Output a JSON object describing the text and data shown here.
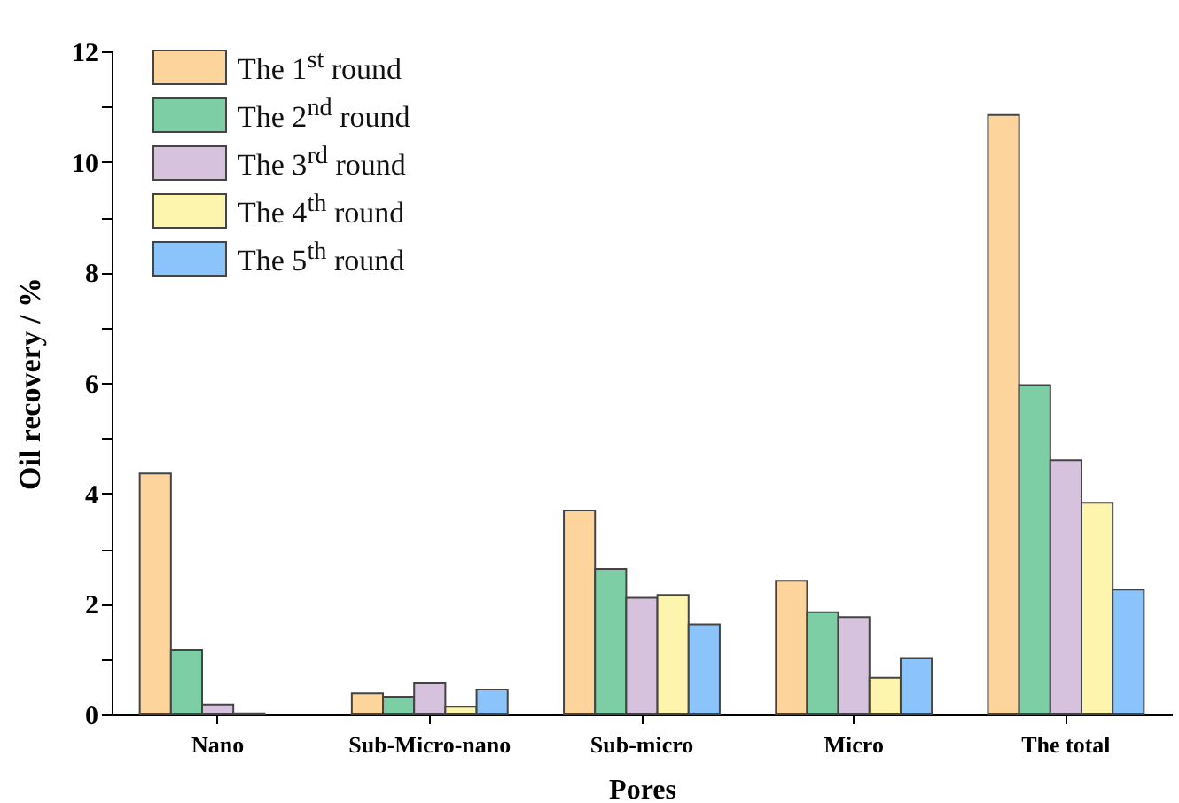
{
  "chart_data": {
    "type": "bar",
    "xlabel": "Pores",
    "ylabel": "Oil recovery / %",
    "categories": [
      "Nano",
      "Sub-Micro-nano",
      "Sub-micro",
      "Micro",
      "The total"
    ],
    "series": [
      {
        "name": "The 1$^{st}$ round",
        "color": "#fdd59c",
        "values": [
          4.36,
          0.38,
          3.69,
          2.42,
          10.85
        ]
      },
      {
        "name": "The 2$^{nd}$ round",
        "color": "#7dcea4",
        "values": [
          1.17,
          0.32,
          2.63,
          1.85,
          5.96
        ]
      },
      {
        "name": "The 3$^{rd}$ round",
        "color": "#d6c2dd",
        "values": [
          0.18,
          0.56,
          2.11,
          1.76,
          4.6
        ]
      },
      {
        "name": "The 4$^{th}$ round",
        "color": "#fdf5ad",
        "values": [
          0.02,
          0.14,
          2.16,
          0.66,
          3.83
        ]
      },
      {
        "name": "The 5$^{th}$ round",
        "color": "#8ac4fb",
        "values": [
          null,
          0.45,
          1.63,
          1.02,
          2.26
        ]
      }
    ],
    "ylim": [
      0,
      12
    ],
    "yticks": [
      0,
      {
        "value": 1,
        "label": null
      },
      2,
      {
        "value": 3,
        "label": null
      },
      4,
      {
        "value": 5,
        "label": null
      },
      6,
      {
        "value": 7,
        "label": null
      },
      8,
      {
        "value": 9,
        "label": null
      },
      10,
      {
        "value": 11,
        "label": null
      },
      12
    ],
    "grid": false,
    "legend": "top left"
  }
}
